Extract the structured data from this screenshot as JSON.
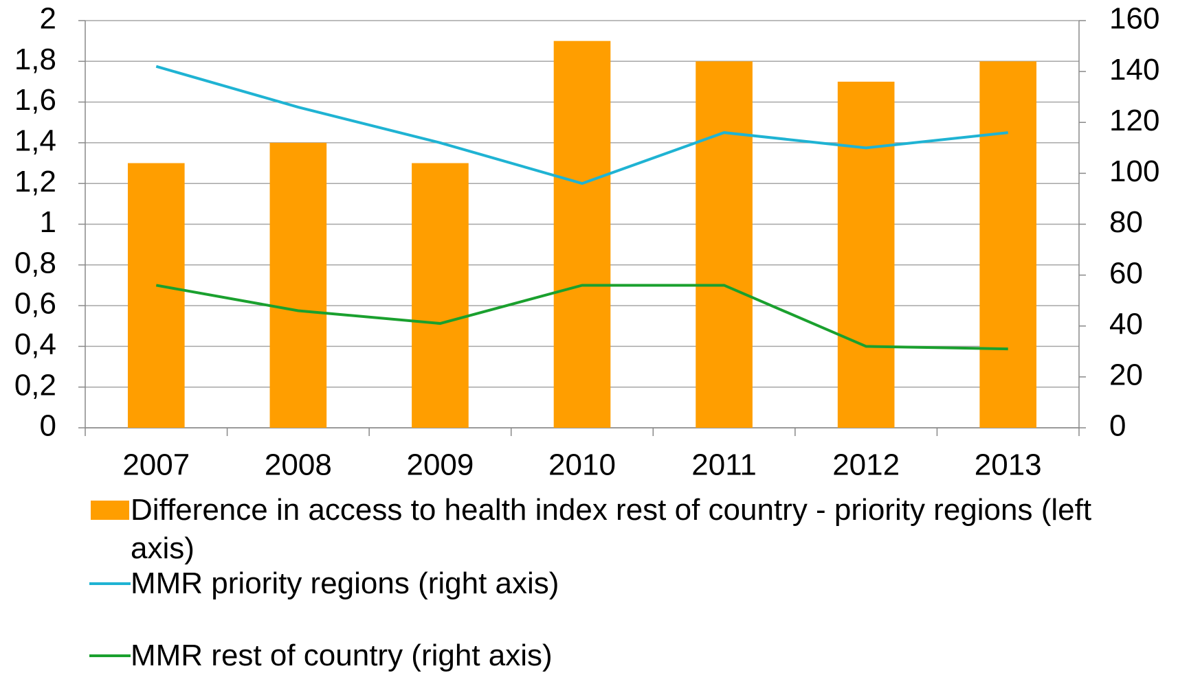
{
  "chart_data": {
    "type": "bar-line",
    "categories": [
      "2007",
      "2008",
      "2009",
      "2010",
      "2011",
      "2012",
      "2013"
    ],
    "series": [
      {
        "name": "Difference in access to health index rest of country - priority regions (left axis)",
        "type": "bar",
        "color": "#ff9e00",
        "values": [
          1.3,
          1.4,
          1.3,
          1.9,
          1.8,
          1.7,
          1.8
        ]
      },
      {
        "name": "MMR priority regions (right axis)",
        "type": "line",
        "axis": "y2",
        "color": "#1fb3d3",
        "values": [
          142,
          126,
          112,
          96,
          116,
          110,
          116
        ]
      },
      {
        "name": "MMR rest of country (right axis)",
        "type": "line",
        "axis": "y2",
        "color": "#1aa02e",
        "values": [
          56,
          46,
          41,
          56,
          56,
          32,
          31
        ]
      }
    ],
    "ylim": [
      0,
      2
    ],
    "yticks": [
      0,
      {
        "value": 0.2,
        "label": "0,2"
      },
      {
        "value": 0.4,
        "label": "0,4"
      },
      {
        "value": 0.6,
        "label": "0,6"
      },
      {
        "value": 0.8,
        "label": "0,8"
      },
      1,
      {
        "value": 1.2,
        "label": "1,2"
      },
      {
        "value": 1.4,
        "label": "1,4"
      },
      {
        "value": 1.6,
        "label": "1,6"
      },
      {
        "value": 1.8,
        "label": "1,8"
      },
      2
    ],
    "y2lim": [
      0,
      160
    ],
    "y2ticks": [
      0,
      20,
      40,
      60,
      80,
      100,
      120,
      140,
      160
    ],
    "grid": true,
    "legend": "bottom"
  }
}
